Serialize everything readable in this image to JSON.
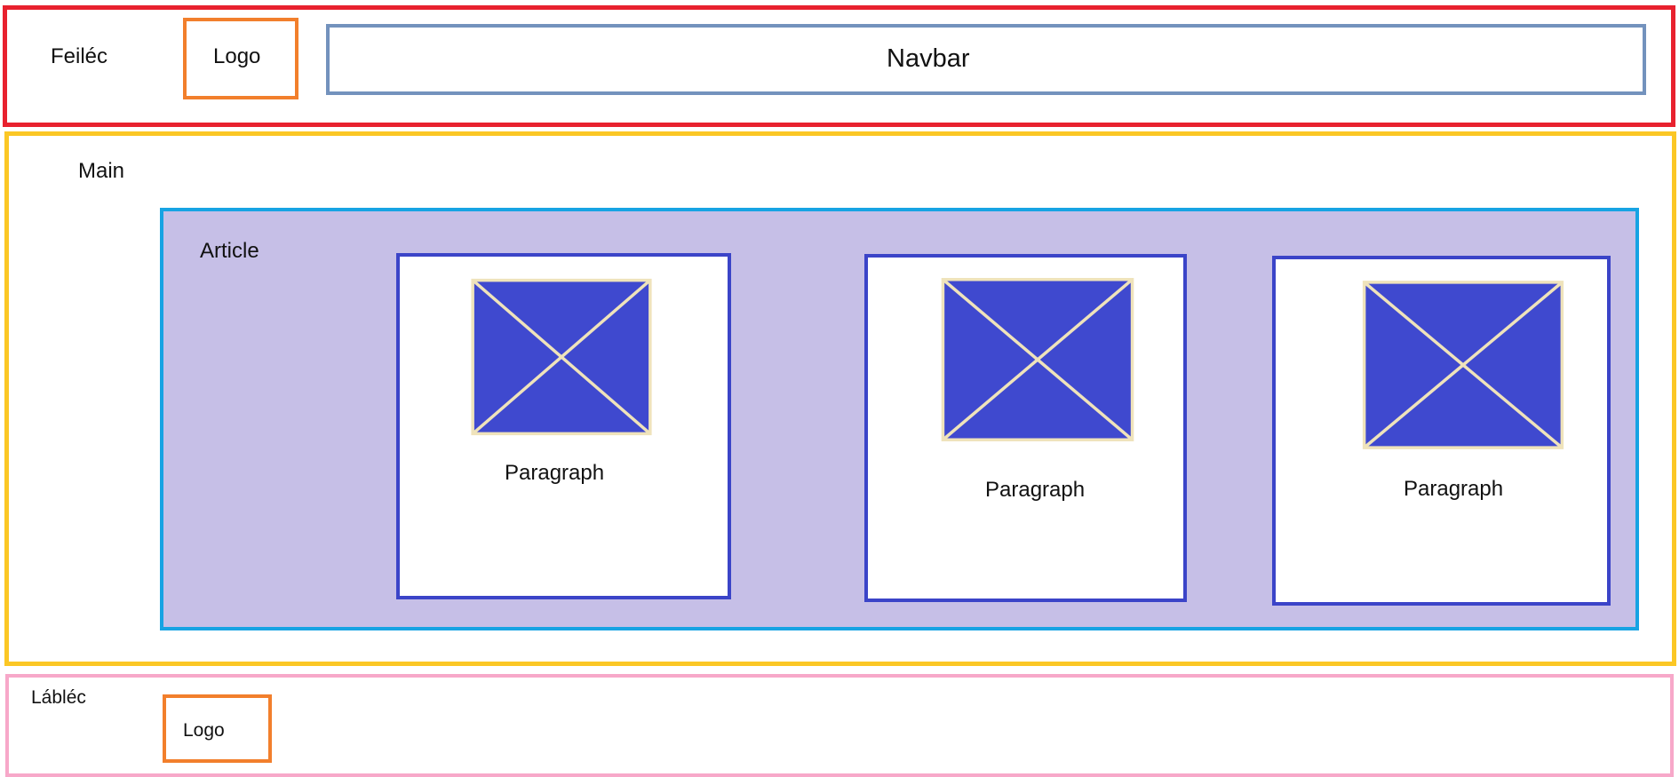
{
  "header": {
    "label": "Feiléc",
    "logo": "Logo",
    "navbar": "Navbar"
  },
  "main": {
    "label": "Main",
    "article": {
      "label": "Article",
      "cards": [
        {
          "paragraph": "Paragraph",
          "image_icon": "image-placeholder-icon"
        },
        {
          "paragraph": "Paragraph",
          "image_icon": "image-placeholder-icon"
        },
        {
          "paragraph": "Paragraph",
          "image_icon": "image-placeholder-icon"
        }
      ]
    }
  },
  "footer": {
    "label": "Lábléc",
    "logo": "Logo"
  },
  "colors": {
    "header_border": "#e8212e",
    "logo_border": "#f27f2c",
    "navbar_border": "#7392bd",
    "main_border": "#fbc725",
    "article_border": "#17a3e3",
    "article_fill": "#c6bfe7",
    "card_border": "#3b44c8",
    "image_fill": "#3f49cf",
    "image_stroke": "#efe3bb",
    "footer_border": "#f7a8c9"
  }
}
